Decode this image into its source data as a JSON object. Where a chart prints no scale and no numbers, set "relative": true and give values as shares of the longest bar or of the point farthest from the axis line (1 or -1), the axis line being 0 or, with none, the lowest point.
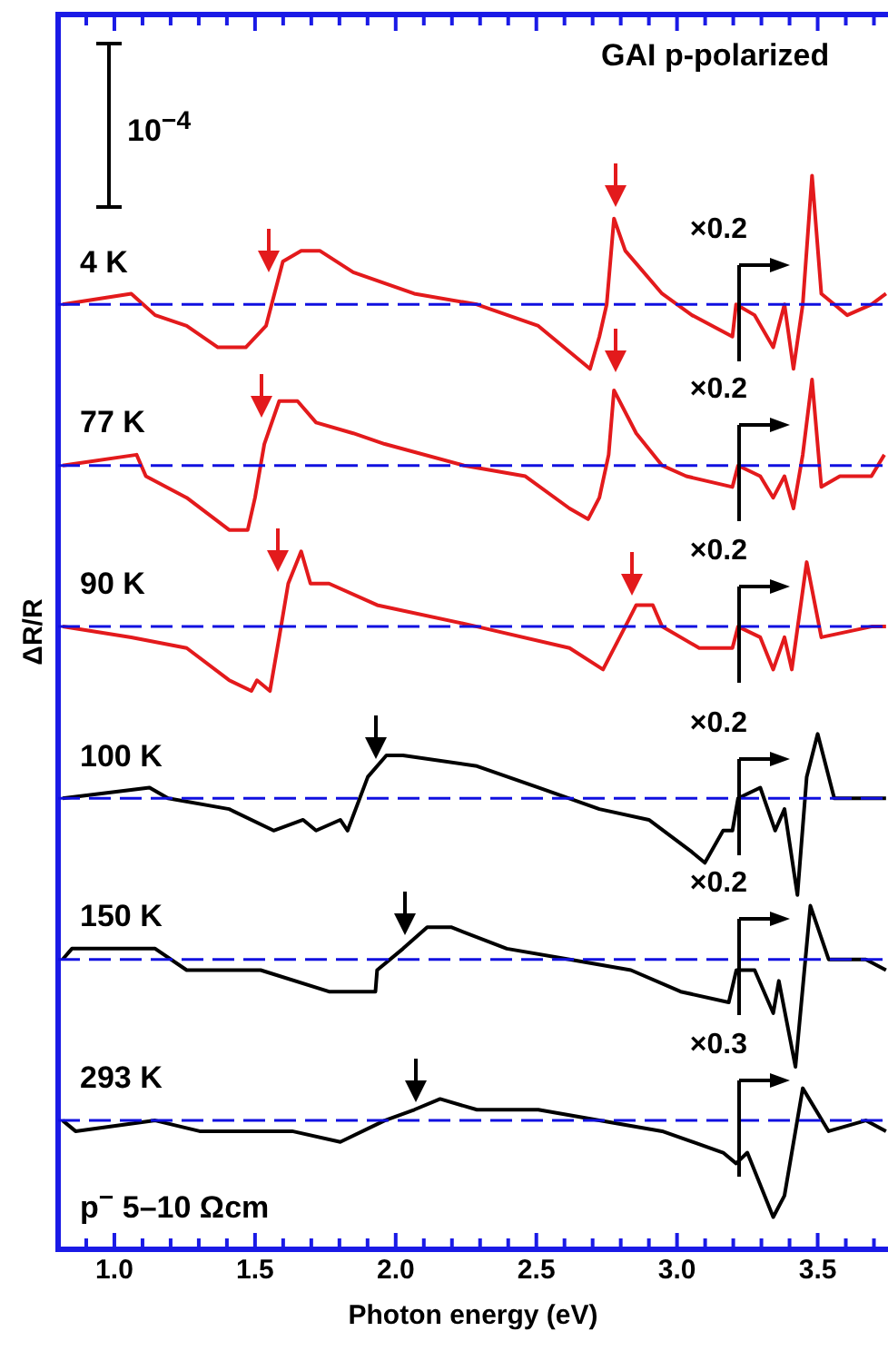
{
  "chart_data": {
    "type": "line",
    "relative": true,
    "xlabel": "Photon energy (eV)",
    "ylabel": "ΔR/R",
    "xlim": [
      0.8,
      3.75
    ],
    "xticks": [
      {
        "value": 0.9,
        "label": null
      },
      {
        "value": 1,
        "label": "1.0"
      },
      {
        "value": 1.1,
        "label": null
      },
      {
        "value": 1.2,
        "label": null
      },
      {
        "value": 1.3,
        "label": null
      },
      {
        "value": 1.4,
        "label": null
      },
      {
        "value": 1.5,
        "label": "1.5"
      },
      {
        "value": 1.6,
        "label": null
      },
      {
        "value": 1.7,
        "label": null
      },
      {
        "value": 1.8,
        "label": null
      },
      {
        "value": 1.9,
        "label": null
      },
      {
        "value": 2,
        "label": "2.0"
      },
      {
        "value": 2.1,
        "label": null
      },
      {
        "value": 2.2,
        "label": null
      },
      {
        "value": 2.3,
        "label": null
      },
      {
        "value": 2.4,
        "label": null
      },
      {
        "value": 2.5,
        "label": "2.5"
      },
      {
        "value": 2.6,
        "label": null
      },
      {
        "value": 2.7,
        "label": null
      },
      {
        "value": 2.8,
        "label": null
      },
      {
        "value": 2.9,
        "label": null
      },
      {
        "value": 3,
        "label": "3.0"
      },
      {
        "value": 3.1,
        "label": null
      },
      {
        "value": 3.2,
        "label": null
      },
      {
        "value": 3.3,
        "label": null
      },
      {
        "value": 3.4,
        "label": null
      },
      {
        "value": 3.5,
        "label": "3.5"
      },
      {
        "value": 3.6,
        "label": null
      },
      {
        "value": 3.7,
        "label": null
      }
    ],
    "grid": false,
    "legend": false,
    "marker": "none",
    "line_style": "solid",
    "series": [
      {
        "name": "4 K",
        "color": "#e31a1c",
        "x": [
          0.816,
          1.06,
          1.145,
          1.257,
          1.368,
          1.467,
          1.539,
          1.599,
          1.664,
          1.73,
          1.849,
          2.066,
          2.289,
          2.507,
          2.691,
          2.724,
          2.75,
          2.776,
          2.816,
          2.947,
          3.053,
          3.197,
          3.21,
          3.276,
          3.342,
          3.382,
          3.414,
          3.447,
          3.48,
          3.513,
          3.559,
          3.605,
          3.691,
          3.743
        ],
        "values": [
          0.88,
          0.89,
          0.87,
          0.86,
          0.84,
          0.84,
          0.86,
          0.92,
          0.93,
          0.93,
          0.91,
          0.89,
          0.88,
          0.86,
          0.82,
          0.85,
          0.88,
          0.96,
          0.93,
          0.89,
          0.87,
          0.85,
          0.88,
          0.87,
          0.84,
          0.88,
          0.82,
          0.88,
          1.0,
          0.89,
          0.88,
          0.87,
          0.88,
          0.89
        ]
      },
      {
        "name": "77 K",
        "color": "#e31a1c",
        "x": [
          0.816,
          1.079,
          1.112,
          1.257,
          1.408,
          1.434,
          1.474,
          1.5,
          1.533,
          1.586,
          1.651,
          1.717,
          1.849,
          1.961,
          2.243,
          2.461,
          2.618,
          2.684,
          2.724,
          2.757,
          2.776,
          2.855,
          2.947,
          3.033,
          3.197,
          3.217,
          3.296,
          3.342,
          3.382,
          3.414,
          3.447,
          3.48,
          3.513,
          3.579,
          3.691,
          3.737
        ],
        "values": [
          0.73,
          0.74,
          0.72,
          0.7,
          0.67,
          0.67,
          0.67,
          0.7,
          0.75,
          0.79,
          0.79,
          0.77,
          0.76,
          0.75,
          0.73,
          0.72,
          0.69,
          0.68,
          0.7,
          0.74,
          0.8,
          0.76,
          0.73,
          0.72,
          0.71,
          0.73,
          0.72,
          0.7,
          0.72,
          0.69,
          0.74,
          0.81,
          0.71,
          0.72,
          0.72,
          0.74
        ]
      },
      {
        "name": "90 K",
        "color": "#e31a1c",
        "x": [
          0.816,
          1.06,
          1.257,
          1.408,
          1.487,
          1.507,
          1.553,
          1.586,
          1.618,
          1.664,
          1.697,
          1.763,
          1.934,
          2.289,
          2.618,
          2.737,
          2.816,
          2.855,
          2.914,
          2.947,
          3.079,
          3.197,
          3.217,
          3.296,
          3.342,
          3.382,
          3.408,
          3.461,
          3.513,
          3.691,
          3.743
        ],
        "values": [
          0.58,
          0.57,
          0.56,
          0.53,
          0.52,
          0.53,
          0.52,
          0.57,
          0.62,
          0.65,
          0.62,
          0.62,
          0.6,
          0.58,
          0.56,
          0.54,
          0.58,
          0.6,
          0.6,
          0.58,
          0.56,
          0.56,
          0.58,
          0.57,
          0.54,
          0.57,
          0.54,
          0.64,
          0.57,
          0.58,
          0.58
        ]
      },
      {
        "name": "100 K",
        "color": "#000000",
        "x": [
          0.816,
          1.125,
          1.191,
          1.408,
          1.566,
          1.671,
          1.717,
          1.803,
          1.829,
          1.901,
          1.967,
          2.026,
          2.289,
          2.507,
          2.724,
          2.9,
          3.053,
          3.099,
          3.164,
          3.197,
          3.217,
          3.296,
          3.349,
          3.382,
          3.428,
          3.461,
          3.5,
          3.559,
          3.671,
          3.743
        ],
        "values": [
          0.42,
          0.43,
          0.42,
          0.41,
          0.39,
          0.4,
          0.39,
          0.4,
          0.39,
          0.44,
          0.46,
          0.46,
          0.45,
          0.43,
          0.41,
          0.4,
          0.37,
          0.36,
          0.39,
          0.39,
          0.42,
          0.43,
          0.39,
          0.41,
          0.33,
          0.44,
          0.48,
          0.42,
          0.42,
          0.42
        ]
      },
      {
        "name": "150 K",
        "color": "#000000",
        "x": [
          0.816,
          0.849,
          1.145,
          1.257,
          1.52,
          1.763,
          1.829,
          1.928,
          1.934,
          2.026,
          2.112,
          2.197,
          2.395,
          2.618,
          2.836,
          3.013,
          3.184,
          3.211,
          3.276,
          3.342,
          3.362,
          3.421,
          3.474,
          3.539,
          3.671,
          3.743
        ],
        "values": [
          0.27,
          0.28,
          0.28,
          0.26,
          0.26,
          0.24,
          0.24,
          0.24,
          0.26,
          0.28,
          0.3,
          0.3,
          0.28,
          0.27,
          0.26,
          0.24,
          0.23,
          0.26,
          0.26,
          0.22,
          0.25,
          0.17,
          0.32,
          0.27,
          0.27,
          0.26
        ]
      },
      {
        "name": "293 K",
        "color": "#000000",
        "x": [
          0.816,
          0.862,
          1.145,
          1.303,
          1.632,
          1.803,
          1.961,
          2.066,
          2.158,
          2.289,
          2.507,
          2.724,
          2.947,
          3.164,
          3.21,
          3.25,
          3.342,
          3.382,
          3.447,
          3.539,
          3.671,
          3.743
        ],
        "values": [
          0.12,
          0.11,
          0.12,
          0.11,
          0.11,
          0.1,
          0.12,
          0.13,
          0.14,
          0.13,
          0.13,
          0.12,
          0.11,
          0.09,
          0.08,
          0.09,
          0.03,
          0.05,
          0.15,
          0.11,
          0.12,
          0.11
        ]
      }
    ],
    "ref_lines": [
      {
        "axis": "y",
        "value": 0.88,
        "color": "#1010e0",
        "line_style": "dashed"
      },
      {
        "axis": "y",
        "value": 0.73,
        "color": "#1010e0",
        "line_style": "dashed"
      },
      {
        "axis": "y",
        "value": 0.58,
        "color": "#1010e0",
        "line_style": "dashed"
      },
      {
        "axis": "y",
        "value": 0.42,
        "color": "#1010e0",
        "line_style": "dashed"
      },
      {
        "axis": "y",
        "value": 0.27,
        "color": "#1010e0",
        "line_style": "dashed"
      },
      {
        "axis": "y",
        "value": 0.12,
        "color": "#1010e0",
        "line_style": "dashed"
      }
    ],
    "annotations": [
      "GAI p-polarized",
      "10$^{−4}$",
      "p$^{−}$ 5–10 Ωcm",
      "×0.2",
      "×0.2",
      "×0.2",
      "×0.2",
      "×0.2",
      "×0.3"
    ]
  }
}
